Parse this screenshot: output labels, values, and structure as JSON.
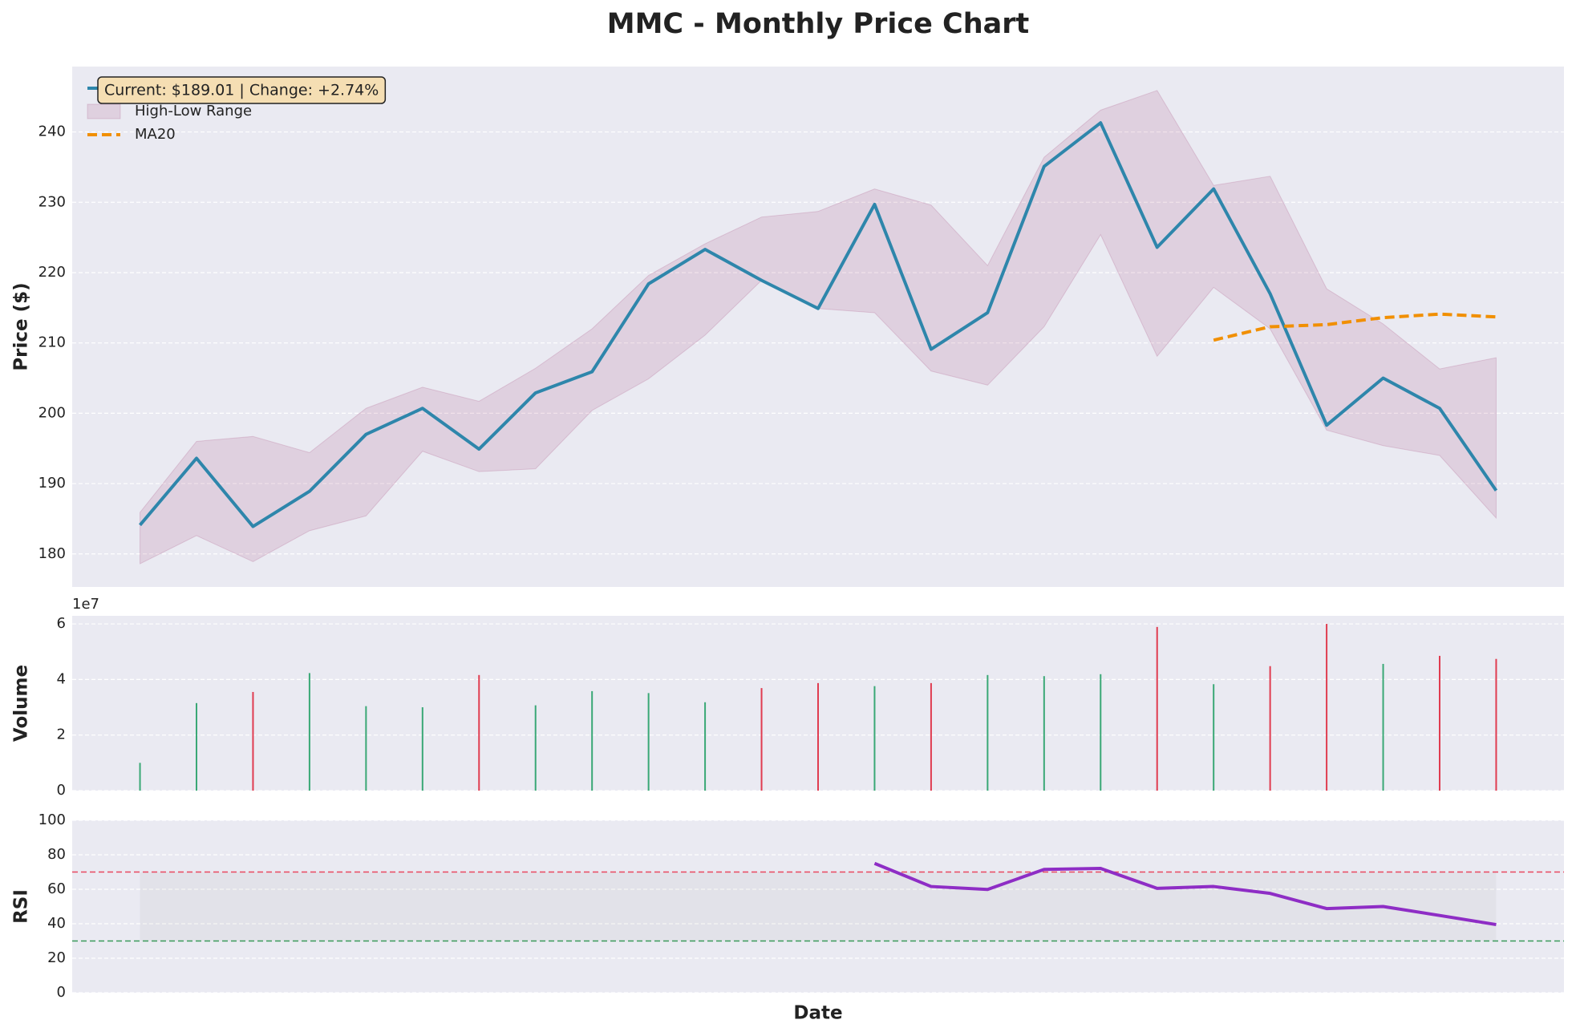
{
  "chart_data": [
    {
      "type": "line",
      "title": "MMC - Monthly Price Chart",
      "ylabel": "Price ($)",
      "categories": [
        null,
        null,
        null,
        null,
        null,
        null,
        null,
        null,
        null,
        null,
        null,
        null,
        null,
        null,
        null,
        null,
        null,
        null,
        null,
        null,
        null,
        null,
        null,
        null,
        null
      ],
      "series": [
        {
          "name": "Close Price",
          "color": "#2e86ab",
          "style": "solid",
          "values": [
            184.1,
            193.6,
            183.9,
            188.9,
            197.0,
            200.7,
            194.9,
            202.9,
            205.9,
            218.4,
            223.3,
            218.9,
            214.9,
            229.7,
            209.1,
            214.3,
            235.1,
            241.3,
            223.6,
            231.9,
            217.0,
            198.3,
            205.0,
            200.7,
            189.01
          ]
        },
        {
          "name": "MA20",
          "color": "#f18f01",
          "style": "dashed",
          "values": [
            null,
            null,
            null,
            null,
            null,
            null,
            null,
            null,
            null,
            null,
            null,
            null,
            null,
            null,
            null,
            null,
            null,
            null,
            null,
            210.4,
            212.3,
            212.6,
            213.6,
            214.1,
            213.7
          ]
        }
      ],
      "range": {
        "name": "High-Low Range",
        "color": "#a23b72",
        "high": [
          185.9,
          196.0,
          196.7,
          194.4,
          200.7,
          203.7,
          201.7,
          206.4,
          212.0,
          219.6,
          224.1,
          227.9,
          228.7,
          231.9,
          229.6,
          221.0,
          236.4,
          243.1,
          245.9,
          232.4,
          233.7,
          217.7,
          212.7,
          206.3,
          207.9
        ],
        "low": [
          178.6,
          182.6,
          178.9,
          183.3,
          185.4,
          194.6,
          191.7,
          192.1,
          200.4,
          204.9,
          211.1,
          218.9,
          214.9,
          214.3,
          206.0,
          204.0,
          212.3,
          225.4,
          208.1,
          217.9,
          212.0,
          197.6,
          195.4,
          194.0,
          185.1
        ]
      },
      "annotation": "Current: $189.01 | Change: +2.74%",
      "xlim": [
        -1.2,
        25.2
      ],
      "ylim": [
        175.3,
        249.3
      ],
      "yticks": [
        180,
        190,
        200,
        210,
        220,
        230,
        240
      ],
      "grid": true,
      "legend": "upper left"
    },
    {
      "type": "bar",
      "ylabel": "Volume",
      "offset_label": "1e7",
      "categories": [
        null,
        null,
        null,
        null,
        null,
        null,
        null,
        null,
        null,
        null,
        null,
        null,
        null,
        null,
        null,
        null,
        null,
        null,
        null,
        null,
        null,
        null,
        null,
        null,
        null
      ],
      "values": [
        1.0,
        3.15,
        3.55,
        4.23,
        3.04,
        3.0,
        4.16,
        3.07,
        3.58,
        3.51,
        3.18,
        3.69,
        3.87,
        3.76,
        3.87,
        4.16,
        4.12,
        4.19,
        5.89,
        3.83,
        4.48,
        6.0,
        4.56,
        4.85,
        4.74
      ],
      "colors": [
        "#3aa876",
        "#3aa876",
        "#e03c50",
        "#3aa876",
        "#3aa876",
        "#3aa876",
        "#e03c50",
        "#3aa876",
        "#3aa876",
        "#3aa876",
        "#3aa876",
        "#e03c50",
        "#e03c50",
        "#3aa876",
        "#e03c50",
        "#3aa876",
        "#3aa876",
        "#3aa876",
        "#e03c50",
        "#3aa876",
        "#e03c50",
        "#e03c50",
        "#3aa876",
        "#e03c50",
        "#e03c50"
      ],
      "xlim": [
        -1.2,
        25.2
      ],
      "ylim": [
        0,
        6.29
      ],
      "yticks": [
        0,
        2,
        4,
        6
      ],
      "grid": true
    },
    {
      "type": "line",
      "ylabel": "RSI",
      "xlabel": "Date",
      "categories": [
        null,
        null,
        null,
        null,
        null,
        null,
        null,
        null,
        null,
        null,
        null,
        null,
        null,
        null,
        null,
        null,
        null,
        null,
        null,
        null,
        null,
        null,
        null,
        null,
        null
      ],
      "series": [
        {
          "color": "#8e2dc5",
          "style": "solid",
          "values": [
            null,
            null,
            null,
            null,
            null,
            null,
            null,
            null,
            null,
            null,
            null,
            null,
            null,
            75.0,
            61.6,
            59.9,
            71.5,
            72.1,
            60.5,
            61.6,
            57.6,
            48.8,
            50.0,
            44.8,
            39.5
          ]
        }
      ],
      "hlines": [
        {
          "value": 70,
          "color": "#e8475f"
        },
        {
          "value": 30,
          "color": "#3a9a5a"
        }
      ],
      "xlim": [
        -1.2,
        25.2
      ],
      "ylim": [
        0,
        100
      ],
      "yticks": [
        0,
        20,
        40,
        60,
        80,
        100
      ],
      "grid": true
    }
  ]
}
